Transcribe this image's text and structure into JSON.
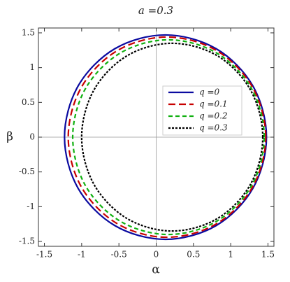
{
  "chart_data": {
    "type": "line",
    "title": "a =0.3",
    "x_label": "α",
    "y_label": "β",
    "xlim": [
      -1.58,
      1.58
    ],
    "ylim": [
      -1.57,
      1.57
    ],
    "xticks": [
      -1.5,
      -1.0,
      -0.5,
      0.0,
      0.5,
      1.0,
      1.5
    ],
    "yticks": [
      -1.5,
      -1.0,
      -0.5,
      0.0,
      0.5,
      1.0,
      1.5
    ],
    "origin_lines": true,
    "legend": "right",
    "series": [
      {
        "name": "q =0",
        "color": "#0a0aa0",
        "dash": "solid",
        "x": [
          1.48,
          1.298,
          0.803,
          0.125,
          -0.553,
          -1.048,
          -1.23,
          -1.048,
          -0.553,
          0.125,
          0.803,
          1.298,
          1.48
        ],
        "values": [
          0,
          0.735,
          1.273,
          1.47,
          1.273,
          0.735,
          0,
          -0.735,
          -1.273,
          -1.47,
          -1.273,
          -0.735,
          0
        ]
      },
      {
        "name": "q =0.1",
        "color": "#c80000",
        "dash": "long",
        "x": [
          1.47,
          1.292,
          0.808,
          0.145,
          -0.518,
          -1.002,
          -1.18,
          -1.002,
          -0.518,
          0.145,
          0.808,
          1.292,
          1.47
        ],
        "values": [
          0,
          0.72,
          1.247,
          1.44,
          1.247,
          0.72,
          0,
          -0.72,
          -1.247,
          -1.44,
          -1.247,
          -0.72,
          0
        ]
      },
      {
        "name": "q =0.2",
        "color": "#10b010",
        "dash": "medium",
        "x": [
          1.45,
          1.278,
          0.808,
          0.165,
          -0.478,
          -0.948,
          -1.12,
          -0.948,
          -0.478,
          0.165,
          0.808,
          1.278,
          1.45
        ],
        "values": [
          0,
          0.7,
          1.212,
          1.4,
          1.212,
          0.7,
          0,
          -0.7,
          -1.212,
          -1.4,
          -1.212,
          -0.7,
          0
        ]
      },
      {
        "name": "q =0.3",
        "color": "#000000",
        "dash": "short",
        "x": [
          1.43,
          1.267,
          0.823,
          0.215,
          -0.393,
          -0.837,
          -1.0,
          -0.837,
          -0.393,
          0.215,
          0.823,
          1.267,
          1.43
        ],
        "values": [
          0,
          0.675,
          1.169,
          1.35,
          1.169,
          0.675,
          0,
          -0.675,
          -1.169,
          -1.35,
          -1.169,
          -0.675,
          0
        ]
      }
    ]
  }
}
